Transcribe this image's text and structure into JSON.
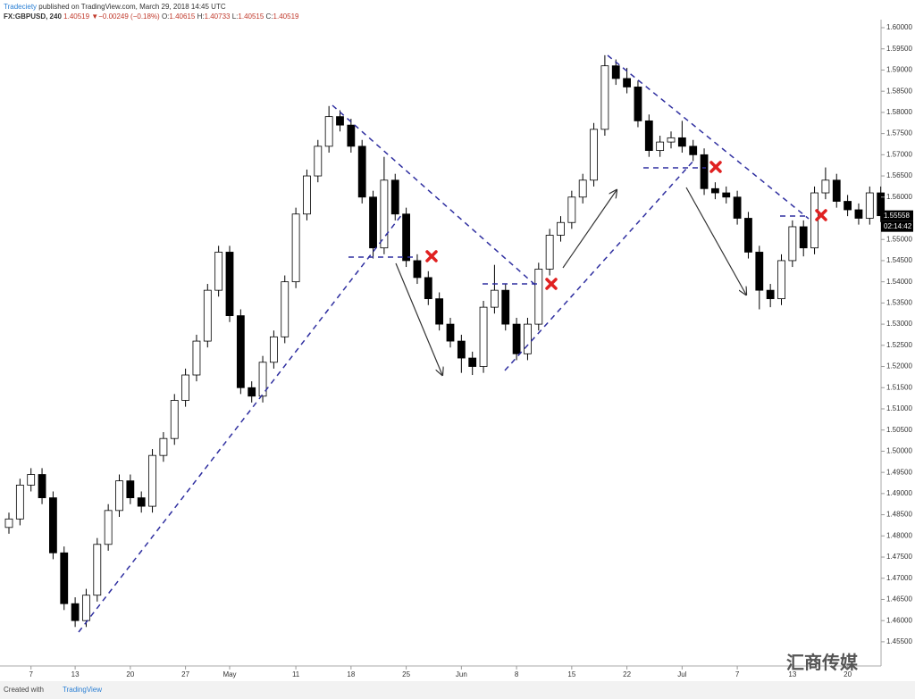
{
  "header": {
    "author": "Tradeciety",
    "published": "published on TradingView.com, March 29, 2018 14:45 UTC",
    "symbol": "FX:GBPUSD, 240",
    "last": "1.40519",
    "arrow": "▼",
    "change": "−0.00249 (−0.18%)",
    "ohlc": [
      {
        "k": "O:",
        "v": "1.40615"
      },
      {
        "k": "H:",
        "v": "1.40733"
      },
      {
        "k": "L:",
        "v": "1.40515"
      },
      {
        "k": "C:",
        "v": "1.40519"
      }
    ]
  },
  "footer": {
    "created": "Created with",
    "brand": "TradingView",
    "watermark": "汇商传媒"
  },
  "chart_data": {
    "type": "candlestick",
    "up_color": "#ffffff",
    "down_color": "#000000",
    "outline_color": "#000000",
    "grid": false,
    "last_price_label": "1.55558",
    "countdown": "02:14:42",
    "categories": [
      null,
      null,
      "7",
      null,
      null,
      null,
      "13",
      null,
      null,
      null,
      null,
      "20",
      null,
      null,
      null,
      null,
      "27",
      null,
      null,
      null,
      "May",
      null,
      null,
      null,
      null,
      null,
      "11",
      null,
      null,
      null,
      null,
      "18",
      null,
      null,
      null,
      null,
      "25",
      null,
      null,
      null,
      null,
      "Jun",
      null,
      null,
      null,
      null,
      "8",
      null,
      null,
      null,
      null,
      "15",
      null,
      null,
      null,
      null,
      "22",
      null,
      null,
      null,
      null,
      "Jul",
      null,
      null,
      null,
      null,
      "7",
      null,
      null,
      null,
      null,
      "13",
      null,
      null,
      null,
      null,
      "20",
      null,
      null,
      null
    ],
    "open": [
      1.482,
      1.484,
      1.492,
      1.4945,
      1.489,
      1.476,
      1.464,
      1.46,
      1.466,
      1.478,
      1.486,
      1.493,
      1.489,
      1.487,
      1.499,
      1.503,
      1.512,
      1.518,
      1.526,
      1.538,
      1.547,
      1.532,
      1.515,
      1.513,
      1.521,
      1.527,
      1.54,
      1.556,
      1.565,
      1.572,
      1.579,
      1.577,
      1.572,
      1.56,
      1.548,
      1.564,
      1.556,
      1.545,
      1.541,
      1.536,
      1.53,
      1.526,
      1.522,
      1.52,
      1.534,
      1.538,
      1.53,
      1.523,
      1.53,
      1.543,
      1.551,
      1.554,
      1.56,
      1.564,
      1.576,
      1.591,
      1.588,
      1.586,
      1.578,
      1.571,
      1.573,
      1.574,
      1.572,
      1.57,
      1.562,
      1.561,
      1.56,
      1.555,
      1.547,
      1.538,
      1.536,
      1.545,
      1.553,
      1.548,
      1.561,
      1.564,
      1.559,
      1.557,
      1.555,
      1.561
    ],
    "high": [
      1.4855,
      1.4935,
      1.496,
      1.496,
      1.4905,
      1.4775,
      1.4655,
      1.4675,
      1.4795,
      1.4875,
      1.4945,
      1.4945,
      1.4905,
      1.5005,
      1.5045,
      1.5135,
      1.5195,
      1.5275,
      1.5395,
      1.5485,
      1.5485,
      1.5335,
      1.5165,
      1.5225,
      1.5285,
      1.5415,
      1.5575,
      1.5665,
      1.5735,
      1.5815,
      1.5805,
      1.5785,
      1.5735,
      1.5615,
      1.5695,
      1.5655,
      1.5575,
      1.5465,
      1.5425,
      1.5375,
      1.5315,
      1.5275,
      1.5235,
      1.5355,
      1.544,
      1.5395,
      1.5315,
      1.5315,
      1.5445,
      1.5525,
      1.5555,
      1.5615,
      1.5655,
      1.5775,
      1.5935,
      1.5925,
      1.5905,
      1.5875,
      1.5795,
      1.5745,
      1.5755,
      1.578,
      1.5735,
      1.5715,
      1.5635,
      1.5625,
      1.5615,
      1.5565,
      1.5485,
      1.5395,
      1.5465,
      1.5545,
      1.5545,
      1.5625,
      1.567,
      1.5655,
      1.5605,
      1.5585,
      1.5625,
      1.5625
    ],
    "low": [
      1.4805,
      1.4825,
      1.4905,
      1.4875,
      1.4745,
      1.4625,
      1.4585,
      1.4585,
      1.4645,
      1.4765,
      1.4845,
      1.4875,
      1.4855,
      1.4855,
      1.4975,
      1.5015,
      1.5105,
      1.5165,
      1.5245,
      1.5365,
      1.5305,
      1.5135,
      1.5115,
      1.5115,
      1.5195,
      1.5255,
      1.5385,
      1.5545,
      1.5635,
      1.5705,
      1.5755,
      1.5705,
      1.5585,
      1.5455,
      1.5465,
      1.5545,
      1.5435,
      1.5395,
      1.5345,
      1.5285,
      1.5245,
      1.5185,
      1.518,
      1.5185,
      1.5325,
      1.5285,
      1.5215,
      1.5215,
      1.5285,
      1.5415,
      1.5495,
      1.5525,
      1.5585,
      1.5625,
      1.5745,
      1.5865,
      1.5845,
      1.5765,
      1.5695,
      1.5695,
      1.5715,
      1.5705,
      1.5685,
      1.5605,
      1.5595,
      1.5585,
      1.5535,
      1.5455,
      1.5335,
      1.534,
      1.5345,
      1.5435,
      1.546,
      1.5465,
      1.5595,
      1.5575,
      1.5555,
      1.5535,
      1.5535,
      1.5541
    ],
    "close": [
      1.484,
      1.492,
      1.4945,
      1.489,
      1.476,
      1.464,
      1.46,
      1.466,
      1.478,
      1.486,
      1.493,
      1.489,
      1.487,
      1.499,
      1.503,
      1.512,
      1.518,
      1.526,
      1.538,
      1.547,
      1.532,
      1.515,
      1.513,
      1.521,
      1.527,
      1.54,
      1.556,
      1.565,
      1.572,
      1.579,
      1.577,
      1.572,
      1.56,
      1.548,
      1.564,
      1.556,
      1.545,
      1.541,
      1.536,
      1.53,
      1.526,
      1.522,
      1.52,
      1.534,
      1.538,
      1.53,
      1.523,
      1.53,
      1.543,
      1.551,
      1.554,
      1.56,
      1.564,
      1.576,
      1.591,
      1.588,
      1.586,
      1.578,
      1.571,
      1.573,
      1.574,
      1.572,
      1.57,
      1.562,
      1.561,
      1.56,
      1.555,
      1.547,
      1.538,
      1.536,
      1.545,
      1.553,
      1.548,
      1.561,
      1.564,
      1.559,
      1.557,
      1.555,
      1.561,
      1.5556
    ],
    "ylim": [
      1.4495,
      1.6019
    ],
    "yticks": [
      {
        "value": 1.455,
        "label": "1.45500"
      },
      {
        "value": 1.46,
        "label": "1.46000"
      },
      {
        "value": 1.465,
        "label": "1.46500"
      },
      {
        "value": 1.47,
        "label": "1.47000"
      },
      {
        "value": 1.475,
        "label": "1.47500"
      },
      {
        "value": 1.48,
        "label": "1.48000"
      },
      {
        "value": 1.485,
        "label": "1.48500"
      },
      {
        "value": 1.49,
        "label": "1.49000"
      },
      {
        "value": 1.495,
        "label": "1.49500"
      },
      {
        "value": 1.5,
        "label": "1.50000"
      },
      {
        "value": 1.505,
        "label": "1.50500"
      },
      {
        "value": 1.51,
        "label": "1.51000"
      },
      {
        "value": 1.515,
        "label": "1.51500"
      },
      {
        "value": 1.52,
        "label": "1.52000"
      },
      {
        "value": 1.525,
        "label": "1.52500"
      },
      {
        "value": 1.53,
        "label": "1.53000"
      },
      {
        "value": 1.535,
        "label": "1.53500"
      },
      {
        "value": 1.54,
        "label": "1.54000"
      },
      {
        "value": 1.545,
        "label": "1.54500"
      },
      {
        "value": 1.55,
        "label": "1.55000"
      },
      {
        "value": 1.555,
        "label": "1.55500"
      },
      {
        "value": 1.56,
        "label": "1.56000"
      },
      {
        "value": 1.565,
        "label": "1.56500"
      },
      {
        "value": 1.57,
        "label": "1.57000"
      },
      {
        "value": 1.575,
        "label": "1.57500"
      },
      {
        "value": 1.58,
        "label": "1.58000"
      },
      {
        "value": 1.585,
        "label": "1.58500"
      },
      {
        "value": 1.59,
        "label": "1.59000"
      },
      {
        "value": 1.595,
        "label": "1.59500"
      },
      {
        "value": 1.6,
        "label": "1.60000"
      }
    ]
  }
}
